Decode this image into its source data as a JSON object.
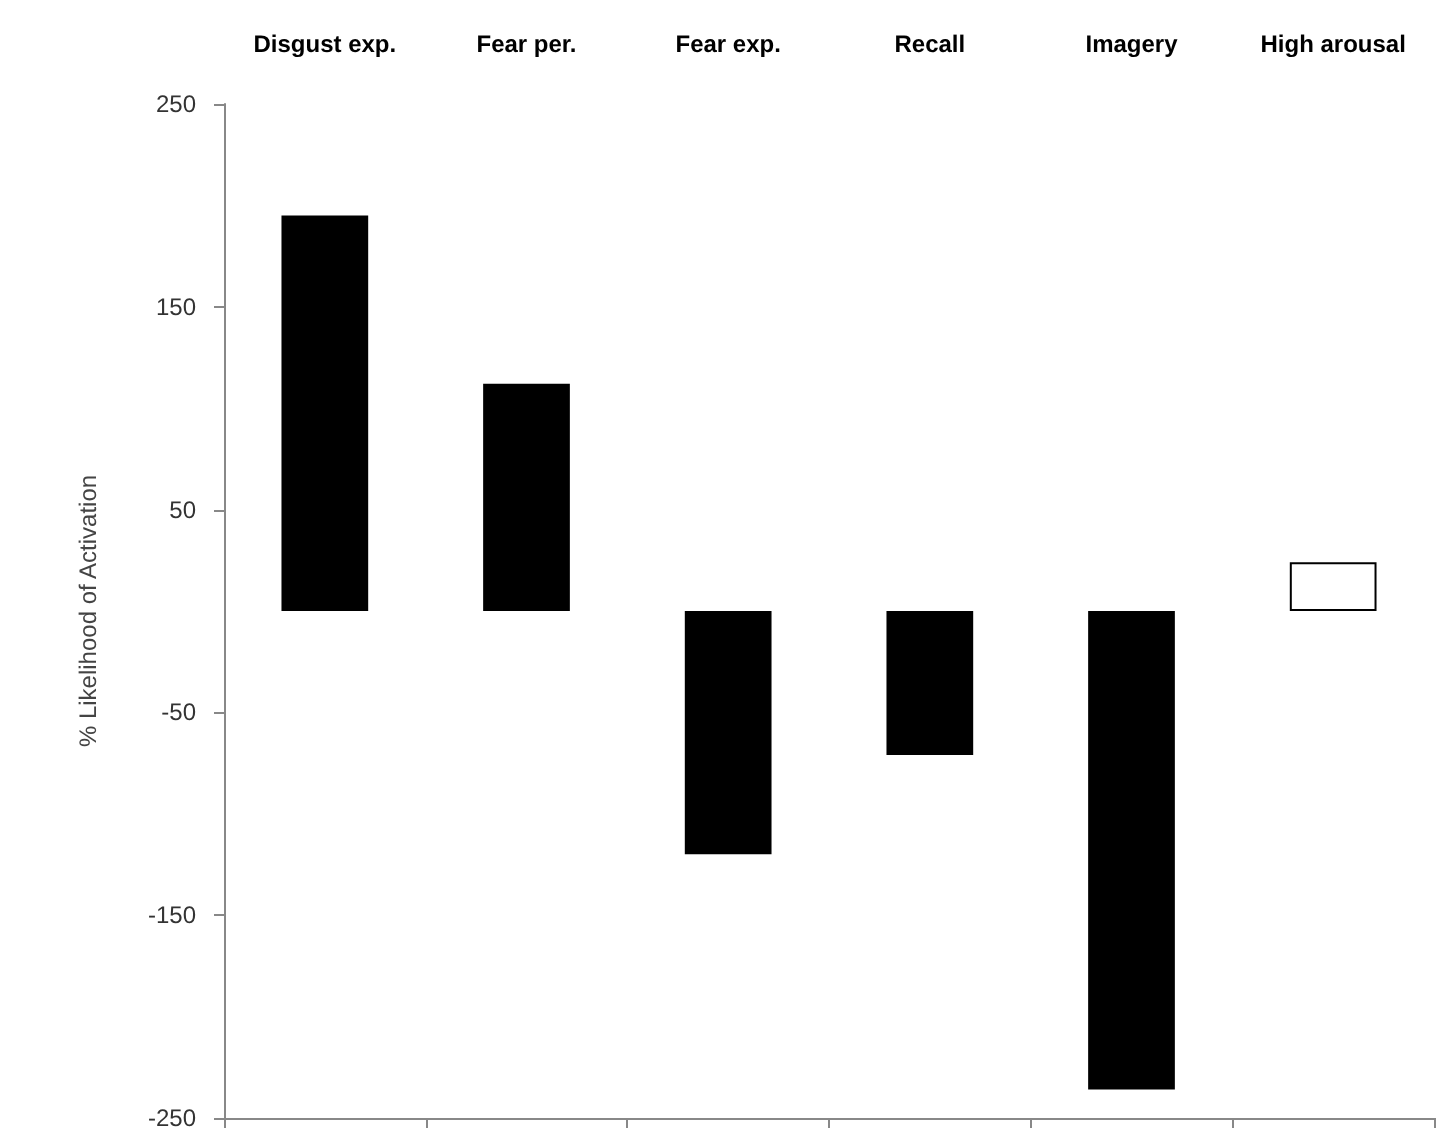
{
  "chart_data": {
    "type": "bar",
    "ylabel": "% Likelihood of Activation",
    "categories": [
      "Disgust exp.",
      "Fear per.",
      "Fear exp.",
      "Recall",
      "Imagery",
      "High arousal"
    ],
    "values": [
      195,
      112,
      -120,
      -71,
      -236,
      24
    ],
    "colors": [
      "#000000",
      "#000000",
      "#000000",
      "#000000",
      "#000000",
      "#ffffff"
    ],
    "ylim": [
      -250,
      250
    ],
    "yticks": [
      -250,
      -150,
      -50,
      50,
      150,
      250
    ],
    "grid": false
  }
}
